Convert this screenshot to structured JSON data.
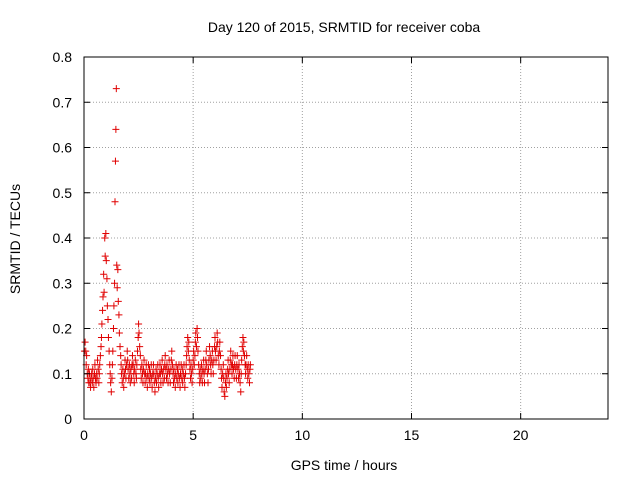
{
  "chart_data": {
    "type": "scatter",
    "title": "Day 120 of 2015, SRMTID for receiver coba",
    "xlabel": "GPS time / hours",
    "ylabel": "SRMTID / TECUs",
    "xlim": [
      0,
      24
    ],
    "ylim": [
      0,
      0.8
    ],
    "xticks": [
      0,
      5,
      10,
      15,
      20
    ],
    "yticks": [
      0,
      0.1,
      0.2,
      0.3,
      0.4,
      0.5,
      0.6,
      0.7,
      0.8
    ],
    "grid": true,
    "marker": "plus",
    "color": "#e00000",
    "points": [
      [
        0.02,
        0.15
      ],
      [
        0.05,
        0.17
      ],
      [
        0.08,
        0.15
      ],
      [
        0.1,
        0.12
      ],
      [
        0.12,
        0.14
      ],
      [
        0.15,
        0.1
      ],
      [
        0.18,
        0.09
      ],
      [
        0.2,
        0.11
      ],
      [
        0.22,
        0.08
      ],
      [
        0.25,
        0.1
      ],
      [
        0.28,
        0.08
      ],
      [
        0.3,
        0.07
      ],
      [
        0.32,
        0.09
      ],
      [
        0.35,
        0.1
      ],
      [
        0.38,
        0.08
      ],
      [
        0.4,
        0.11
      ],
      [
        0.42,
        0.09
      ],
      [
        0.45,
        0.07
      ],
      [
        0.48,
        0.1
      ],
      [
        0.5,
        0.12
      ],
      [
        0.52,
        0.09
      ],
      [
        0.55,
        0.08
      ],
      [
        0.58,
        0.1
      ],
      [
        0.6,
        0.09
      ],
      [
        0.62,
        0.13
      ],
      [
        0.65,
        0.11
      ],
      [
        0.68,
        0.08
      ],
      [
        0.7,
        0.1
      ],
      [
        0.72,
        0.12
      ],
      [
        0.75,
        0.14
      ],
      [
        0.78,
        0.16
      ],
      [
        0.8,
        0.18
      ],
      [
        0.82,
        0.21
      ],
      [
        0.85,
        0.24
      ],
      [
        0.87,
        0.27
      ],
      [
        0.9,
        0.32
      ],
      [
        0.92,
        0.28
      ],
      [
        0.95,
        0.4
      ],
      [
        0.97,
        0.36
      ],
      [
        1.0,
        0.41
      ],
      [
        1.02,
        0.35
      ],
      [
        1.05,
        0.31
      ],
      [
        1.07,
        0.25
      ],
      [
        1.1,
        0.22
      ],
      [
        1.12,
        0.18
      ],
      [
        1.15,
        0.15
      ],
      [
        1.18,
        0.12
      ],
      [
        1.2,
        0.1
      ],
      [
        1.22,
        0.08
      ],
      [
        1.25,
        0.06
      ],
      [
        1.28,
        0.09
      ],
      [
        1.3,
        0.12
      ],
      [
        1.32,
        0.15
      ],
      [
        1.35,
        0.2
      ],
      [
        1.37,
        0.25
      ],
      [
        1.4,
        0.3
      ],
      [
        1.42,
        0.48
      ],
      [
        1.44,
        0.57
      ],
      [
        1.46,
        0.64
      ],
      [
        1.48,
        0.73
      ],
      [
        1.5,
        0.34
      ],
      [
        1.52,
        0.29
      ],
      [
        1.55,
        0.33
      ],
      [
        1.57,
        0.26
      ],
      [
        1.6,
        0.23
      ],
      [
        1.62,
        0.19
      ],
      [
        1.65,
        0.16
      ],
      [
        1.68,
        0.14
      ],
      [
        1.7,
        0.12
      ],
      [
        1.72,
        0.1
      ],
      [
        1.75,
        0.08
      ],
      [
        1.78,
        0.11
      ],
      [
        1.8,
        0.09
      ],
      [
        1.82,
        0.07
      ],
      [
        1.85,
        0.1
      ],
      [
        1.88,
        0.13
      ],
      [
        1.9,
        0.11
      ],
      [
        1.92,
        0.09
      ],
      [
        1.95,
        0.12
      ],
      [
        1.98,
        0.15
      ],
      [
        2.0,
        0.13
      ],
      [
        2.02,
        0.11
      ],
      [
        2.05,
        0.09
      ],
      [
        2.08,
        0.12
      ],
      [
        2.1,
        0.1
      ],
      [
        2.12,
        0.08
      ],
      [
        2.15,
        0.11
      ],
      [
        2.18,
        0.09
      ],
      [
        2.2,
        0.12
      ],
      [
        2.22,
        0.14
      ],
      [
        2.25,
        0.12
      ],
      [
        2.28,
        0.1
      ],
      [
        2.3,
        0.08
      ],
      [
        2.32,
        0.11
      ],
      [
        2.35,
        0.13
      ],
      [
        2.38,
        0.1
      ],
      [
        2.4,
        0.09
      ],
      [
        2.42,
        0.12
      ],
      [
        2.45,
        0.15
      ],
      [
        2.48,
        0.18
      ],
      [
        2.5,
        0.21
      ],
      [
        2.52,
        0.19
      ],
      [
        2.55,
        0.16
      ],
      [
        2.58,
        0.14
      ],
      [
        2.6,
        0.11
      ],
      [
        2.62,
        0.09
      ],
      [
        2.65,
        0.12
      ],
      [
        2.68,
        0.1
      ],
      [
        2.7,
        0.08
      ],
      [
        2.72,
        0.11
      ],
      [
        2.75,
        0.13
      ],
      [
        2.78,
        0.1
      ],
      [
        2.8,
        0.08
      ],
      [
        2.82,
        0.1
      ],
      [
        2.85,
        0.12
      ],
      [
        2.88,
        0.09
      ],
      [
        2.9,
        0.07
      ],
      [
        2.92,
        0.1
      ],
      [
        2.95,
        0.12
      ],
      [
        2.98,
        0.09
      ],
      [
        3.0,
        0.11
      ],
      [
        3.02,
        0.08
      ],
      [
        3.05,
        0.1
      ],
      [
        3.08,
        0.12
      ],
      [
        3.1,
        0.09
      ],
      [
        3.12,
        0.07
      ],
      [
        3.15,
        0.1
      ],
      [
        3.18,
        0.12
      ],
      [
        3.2,
        0.1
      ],
      [
        3.22,
        0.08
      ],
      [
        3.25,
        0.06
      ],
      [
        3.28,
        0.09
      ],
      [
        3.3,
        0.11
      ],
      [
        3.32,
        0.08
      ],
      [
        3.35,
        0.1
      ],
      [
        3.38,
        0.12
      ],
      [
        3.4,
        0.09
      ],
      [
        3.42,
        0.07
      ],
      [
        3.45,
        0.1
      ],
      [
        3.48,
        0.12
      ],
      [
        3.5,
        0.1
      ],
      [
        3.52,
        0.08
      ],
      [
        3.55,
        0.11
      ],
      [
        3.58,
        0.13
      ],
      [
        3.6,
        0.1
      ],
      [
        3.62,
        0.08
      ],
      [
        3.65,
        0.11
      ],
      [
        3.68,
        0.09
      ],
      [
        3.7,
        0.12
      ],
      [
        3.72,
        0.14
      ],
      [
        3.75,
        0.11
      ],
      [
        3.78,
        0.09
      ],
      [
        3.8,
        0.12
      ],
      [
        3.82,
        0.1
      ],
      [
        3.85,
        0.08
      ],
      [
        3.88,
        0.11
      ],
      [
        3.9,
        0.13
      ],
      [
        3.92,
        0.1
      ],
      [
        3.95,
        0.08
      ],
      [
        3.98,
        0.11
      ],
      [
        4.0,
        0.13
      ],
      [
        4.02,
        0.15
      ],
      [
        4.05,
        0.12
      ],
      [
        4.08,
        0.1
      ],
      [
        4.1,
        0.08
      ],
      [
        4.12,
        0.11
      ],
      [
        4.15,
        0.09
      ],
      [
        4.18,
        0.07
      ],
      [
        4.2,
        0.1
      ],
      [
        4.22,
        0.12
      ],
      [
        4.25,
        0.09
      ],
      [
        4.28,
        0.11
      ],
      [
        4.3,
        0.08
      ],
      [
        4.32,
        0.1
      ],
      [
        4.35,
        0.12
      ],
      [
        4.38,
        0.09
      ],
      [
        4.4,
        0.07
      ],
      [
        4.42,
        0.1
      ],
      [
        4.45,
        0.12
      ],
      [
        4.48,
        0.09
      ],
      [
        4.5,
        0.11
      ],
      [
        4.52,
        0.08
      ],
      [
        4.55,
        0.1
      ],
      [
        4.58,
        0.12
      ],
      [
        4.6,
        0.09
      ],
      [
        4.62,
        0.07
      ],
      [
        4.65,
        0.1
      ],
      [
        4.68,
        0.12
      ],
      [
        4.7,
        0.14
      ],
      [
        4.72,
        0.16
      ],
      [
        4.75,
        0.18
      ],
      [
        4.78,
        0.15
      ],
      [
        4.8,
        0.17
      ],
      [
        4.82,
        0.13
      ],
      [
        4.85,
        0.11
      ],
      [
        4.88,
        0.09
      ],
      [
        4.9,
        0.12
      ],
      [
        4.92,
        0.1
      ],
      [
        4.95,
        0.08
      ],
      [
        4.98,
        0.11
      ],
      [
        5.0,
        0.13
      ],
      [
        5.02,
        0.15
      ],
      [
        5.05,
        0.12
      ],
      [
        5.08,
        0.14
      ],
      [
        5.1,
        0.17
      ],
      [
        5.12,
        0.19
      ],
      [
        5.15,
        0.16
      ],
      [
        5.18,
        0.2
      ],
      [
        5.2,
        0.18
      ],
      [
        5.22,
        0.15
      ],
      [
        5.25,
        0.12
      ],
      [
        5.28,
        0.1
      ],
      [
        5.3,
        0.08
      ],
      [
        5.32,
        0.11
      ],
      [
        5.35,
        0.09
      ],
      [
        5.38,
        0.12
      ],
      [
        5.4,
        0.1
      ],
      [
        5.42,
        0.08
      ],
      [
        5.45,
        0.11
      ],
      [
        5.48,
        0.13
      ],
      [
        5.5,
        0.1
      ],
      [
        5.52,
        0.08
      ],
      [
        5.55,
        0.11
      ],
      [
        5.58,
        0.13
      ],
      [
        5.6,
        0.15
      ],
      [
        5.62,
        0.12
      ],
      [
        5.65,
        0.1
      ],
      [
        5.68,
        0.08
      ],
      [
        5.7,
        0.11
      ],
      [
        5.72,
        0.13
      ],
      [
        5.75,
        0.16
      ],
      [
        5.78,
        0.14
      ],
      [
        5.8,
        0.12
      ],
      [
        5.82,
        0.1
      ],
      [
        5.85,
        0.13
      ],
      [
        5.88,
        0.15
      ],
      [
        5.9,
        0.12
      ],
      [
        5.92,
        0.1
      ],
      [
        5.95,
        0.13
      ],
      [
        5.98,
        0.16
      ],
      [
        6.0,
        0.18
      ],
      [
        6.02,
        0.15
      ],
      [
        6.05,
        0.13
      ],
      [
        6.08,
        0.16
      ],
      [
        6.1,
        0.19
      ],
      [
        6.12,
        0.17
      ],
      [
        6.15,
        0.14
      ],
      [
        6.18,
        0.12
      ],
      [
        6.2,
        0.15
      ],
      [
        6.22,
        0.17
      ],
      [
        6.25,
        0.14
      ],
      [
        6.28,
        0.11
      ],
      [
        6.3,
        0.09
      ],
      [
        6.32,
        0.07
      ],
      [
        6.35,
        0.1
      ],
      [
        6.38,
        0.12
      ],
      [
        6.4,
        0.09
      ],
      [
        6.42,
        0.06
      ],
      [
        6.45,
        0.05
      ],
      [
        6.48,
        0.08
      ],
      [
        6.5,
        0.1
      ],
      [
        6.52,
        0.07
      ],
      [
        6.55,
        0.09
      ],
      [
        6.58,
        0.11
      ],
      [
        6.6,
        0.13
      ],
      [
        6.62,
        0.1
      ],
      [
        6.65,
        0.08
      ],
      [
        6.68,
        0.11
      ],
      [
        6.7,
        0.13
      ],
      [
        6.72,
        0.15
      ],
      [
        6.75,
        0.12
      ],
      [
        6.78,
        0.1
      ],
      [
        6.8,
        0.12
      ],
      [
        6.82,
        0.14
      ],
      [
        6.85,
        0.11
      ],
      [
        6.88,
        0.09
      ],
      [
        6.9,
        0.12
      ],
      [
        6.92,
        0.14
      ],
      [
        6.95,
        0.11
      ],
      [
        6.98,
        0.09
      ],
      [
        7.0,
        0.12
      ],
      [
        7.02,
        0.14
      ],
      [
        7.05,
        0.11
      ],
      [
        7.08,
        0.09
      ],
      [
        7.1,
        0.12
      ],
      [
        7.12,
        0.1
      ],
      [
        7.15,
        0.08
      ],
      [
        7.18,
        0.06
      ],
      [
        7.2,
        0.1
      ],
      [
        7.22,
        0.13
      ],
      [
        7.25,
        0.16
      ],
      [
        7.28,
        0.18
      ],
      [
        7.3,
        0.15
      ],
      [
        7.32,
        0.17
      ],
      [
        7.35,
        0.14
      ],
      [
        7.38,
        0.12
      ],
      [
        7.4,
        0.1
      ],
      [
        7.42,
        0.12
      ],
      [
        7.45,
        0.14
      ],
      [
        7.48,
        0.11
      ],
      [
        7.5,
        0.09
      ],
      [
        7.52,
        0.12
      ],
      [
        7.55,
        0.1
      ],
      [
        7.58,
        0.08
      ],
      [
        7.6,
        0.11
      ],
      [
        7.62,
        0.12
      ]
    ]
  }
}
